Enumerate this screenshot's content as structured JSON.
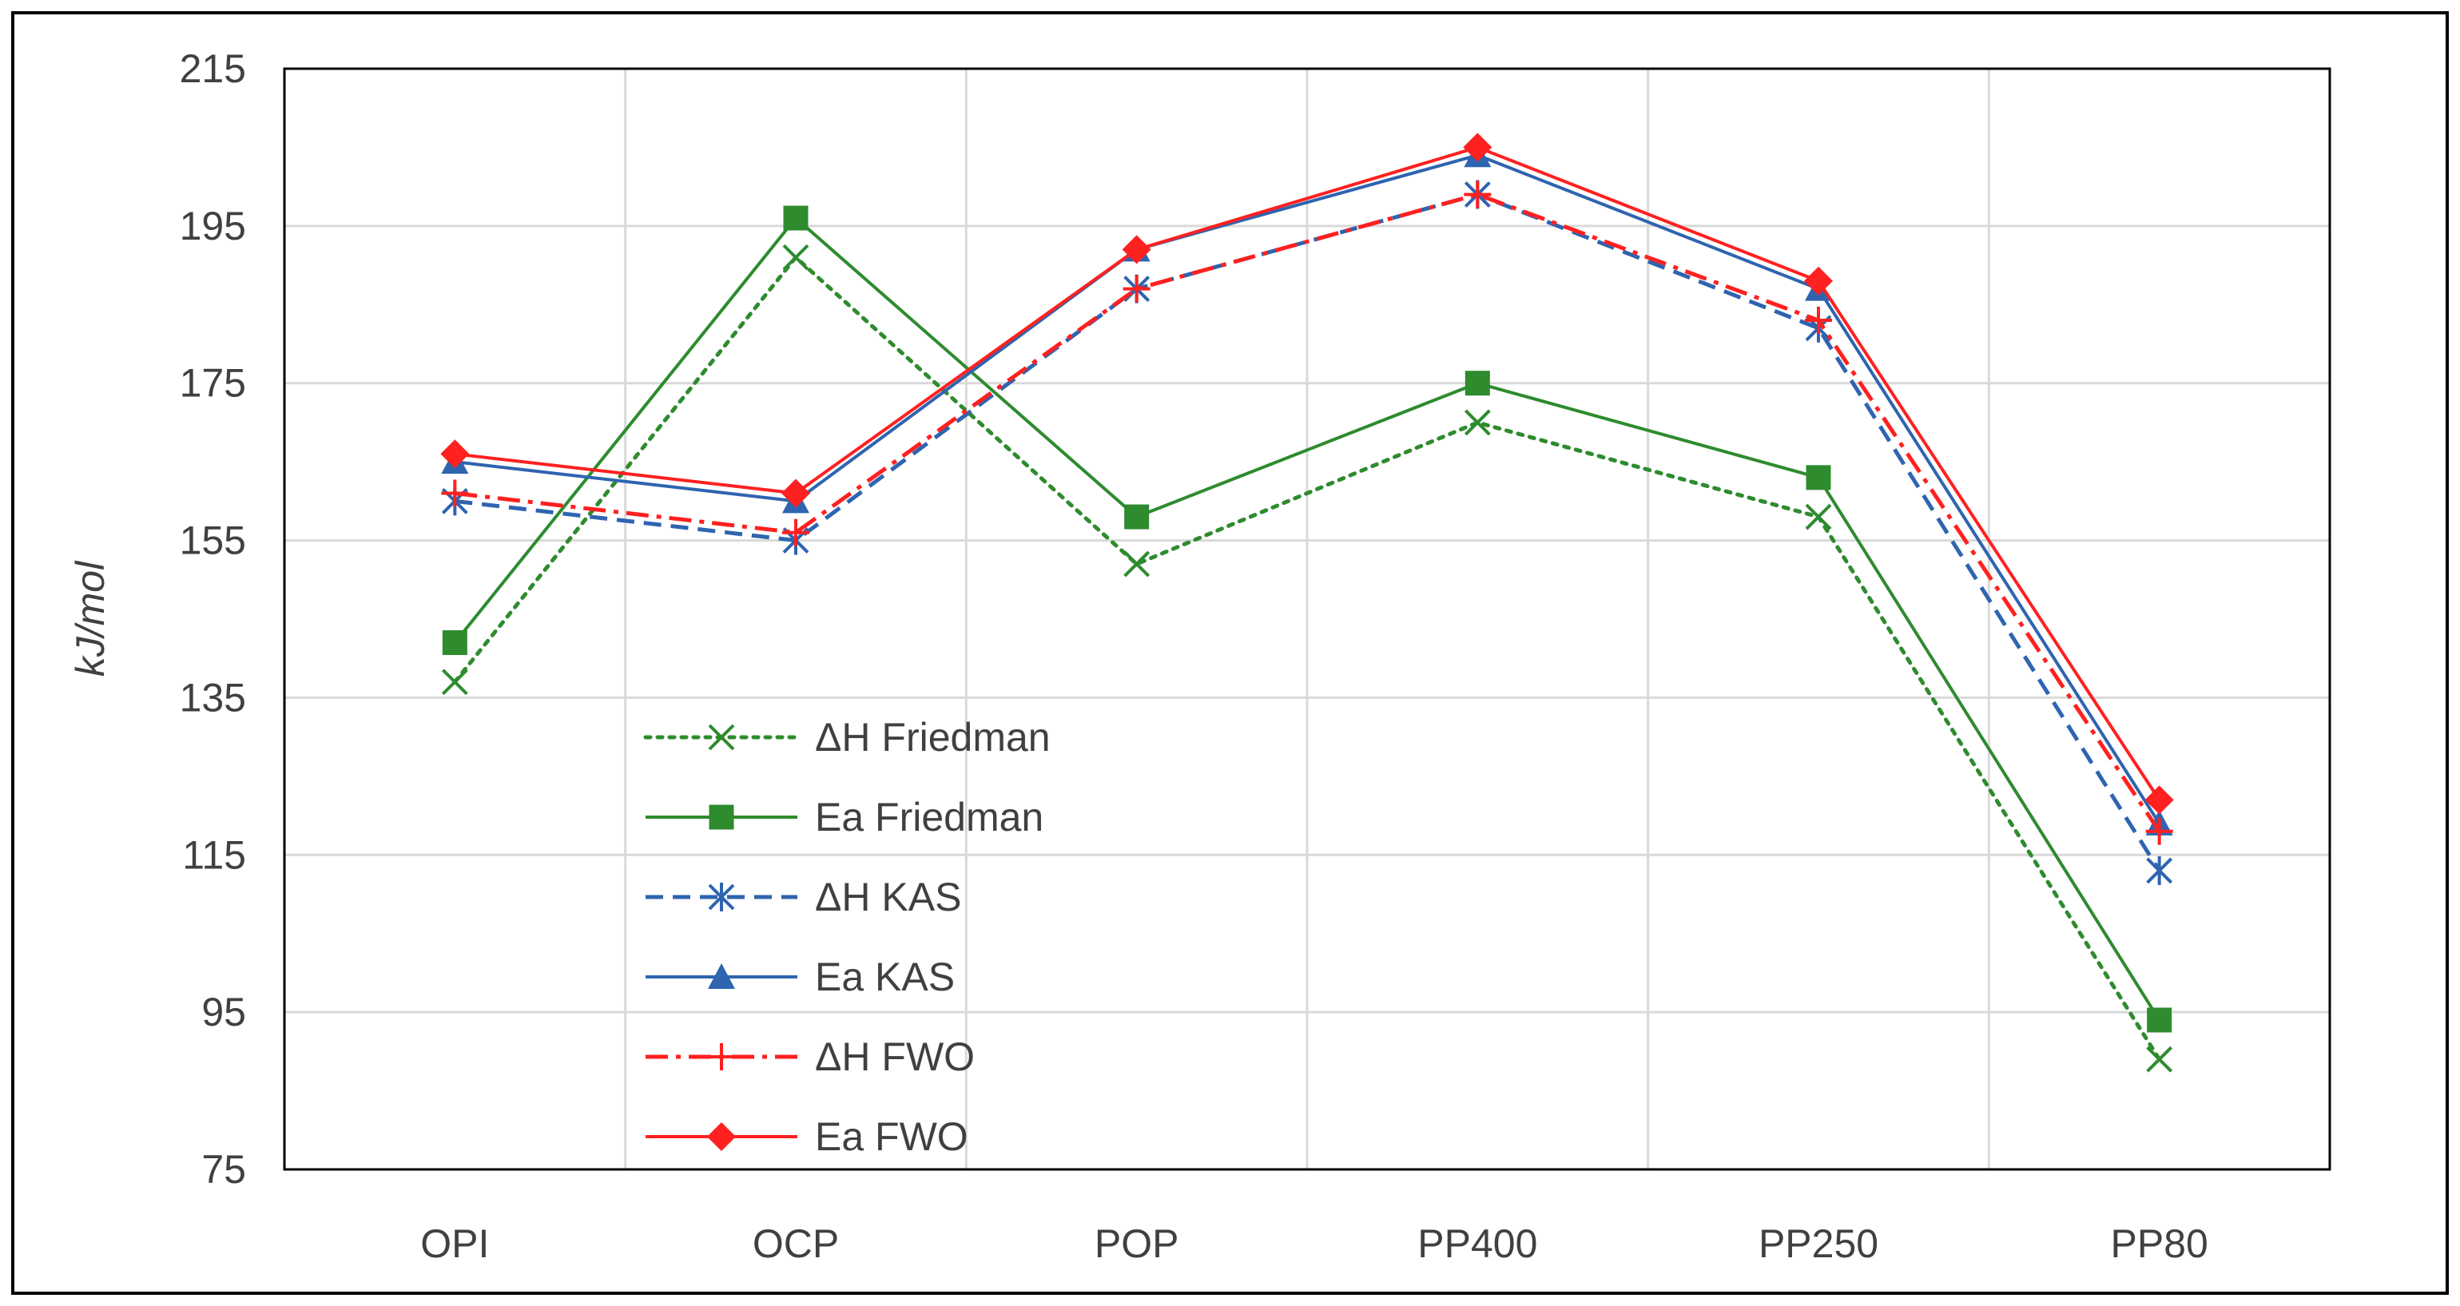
{
  "chart_data": {
    "type": "line",
    "title": "",
    "xlabel": "",
    "ylabel": "kJ/mol",
    "ylim": [
      75,
      215
    ],
    "yticks": [
      75,
      95,
      115,
      135,
      155,
      175,
      195,
      215
    ],
    "grid": true,
    "legend_position": "inside-lower-left",
    "categories": [
      "OPI",
      "OCP",
      "POP",
      "PP400",
      "PP250",
      "PP80"
    ],
    "series": [
      {
        "name": "ΔH Friedman",
        "color": "#2e8b2e",
        "dash": "dotted",
        "marker": "x",
        "values": [
          137,
          191,
          152,
          170,
          158,
          89
        ]
      },
      {
        "name": "Ea Friedman",
        "color": "#2e8b2e",
        "dash": "solid",
        "marker": "square",
        "values": [
          142,
          196,
          158,
          175,
          163,
          94
        ]
      },
      {
        "name": "ΔH KAS",
        "color": "#2e64b0",
        "dash": "dashed",
        "marker": "asterisk",
        "values": [
          160,
          155,
          187,
          199,
          182,
          113
        ]
      },
      {
        "name": "Ea KAS",
        "color": "#2e64b0",
        "dash": "solid",
        "marker": "triangle",
        "values": [
          165,
          160,
          192,
          204,
          187,
          119
        ]
      },
      {
        "name": "ΔH FWO",
        "color": "#ff2020",
        "dash": "dashdot",
        "marker": "plus",
        "values": [
          161,
          156,
          187,
          199,
          183,
          118
        ]
      },
      {
        "name": "Ea FWO",
        "color": "#ff2020",
        "dash": "solid",
        "marker": "diamond",
        "values": [
          166,
          161,
          192,
          205,
          188,
          122
        ]
      }
    ]
  }
}
